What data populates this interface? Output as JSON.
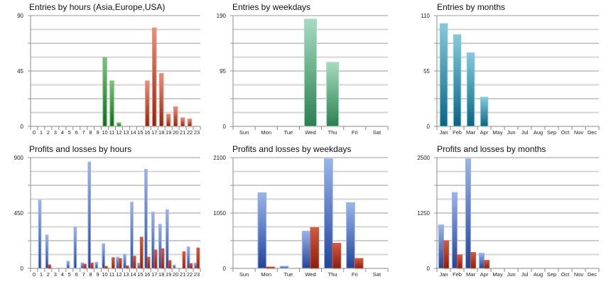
{
  "chart_data": [
    {
      "type": "bar",
      "title": "Entries by hours (Asia,Europe,USA)",
      "xlabel": "",
      "ylabel": "",
      "ylim": [
        0,
        90
      ],
      "yticks": [
        "0",
        "45",
        "90"
      ],
      "grid": true,
      "legend": "none",
      "categories": [
        "0",
        "1",
        "2",
        "3",
        "4",
        "5",
        "6",
        "7",
        "8",
        "9",
        "10",
        "11",
        "12",
        "13",
        "14",
        "15",
        "16",
        "17",
        "18",
        "19",
        "20",
        "21",
        "22",
        "23"
      ],
      "series": [
        {
          "name": "Asia/Europe",
          "color_top": "#7cc47c",
          "color_bottom": "#0f6b1a",
          "values": [
            0,
            0,
            0,
            0,
            0,
            0,
            0,
            0,
            0,
            0,
            56,
            37,
            3,
            0,
            0,
            0,
            0,
            0,
            0,
            0,
            0,
            0,
            0,
            0
          ]
        },
        {
          "name": "USA",
          "color_top": "#e8907c",
          "color_bottom": "#8e2410",
          "values": [
            0,
            0,
            0,
            0,
            0,
            0,
            0,
            0,
            0,
            0,
            0,
            0,
            0,
            0,
            0,
            0,
            37,
            80,
            43,
            10,
            16,
            7,
            6,
            0
          ]
        }
      ],
      "stacked": true
    },
    {
      "type": "bar",
      "title": "Entries by weekdays",
      "xlabel": "",
      "ylabel": "",
      "ylim": [
        0,
        190
      ],
      "yticks": [
        "0",
        "95",
        "190"
      ],
      "grid": true,
      "legend": "none",
      "categories": [
        "Sun",
        "Mon",
        "Tue",
        "Wed",
        "Thu",
        "Fri",
        "Sat"
      ],
      "series": [
        {
          "name": "Entries",
          "color_top": "#a6dcc0",
          "color_bottom": "#2a8050",
          "values": [
            0,
            0,
            0,
            184,
            110,
            0,
            0
          ]
        }
      ],
      "stacked": true
    },
    {
      "type": "bar",
      "title": "Entries by months",
      "xlabel": "",
      "ylabel": "",
      "ylim": [
        0,
        110
      ],
      "yticks": [
        "0",
        "55",
        "110"
      ],
      "grid": true,
      "legend": "none",
      "categories": [
        "Jan",
        "Feb",
        "Mar",
        "Apr",
        "May",
        "Jun",
        "Jul",
        "Aug",
        "Sep",
        "Oct",
        "Nov",
        "Dec"
      ],
      "series": [
        {
          "name": "Entries",
          "color_top": "#86cadc",
          "color_bottom": "#0a6482",
          "values": [
            102,
            91,
            73,
            29,
            0,
            0,
            0,
            0,
            0,
            0,
            0,
            0
          ]
        }
      ],
      "stacked": true
    },
    {
      "type": "bar",
      "title": "Profits and losses by hours",
      "xlabel": "",
      "ylabel": "",
      "ylim": [
        0,
        900
      ],
      "yticks": [
        "0",
        "450",
        "900"
      ],
      "grid": true,
      "legend": "none",
      "categories": [
        "0",
        "1",
        "2",
        "3",
        "4",
        "5",
        "6",
        "7",
        "8",
        "9",
        "10",
        "11",
        "12",
        "13",
        "14",
        "15",
        "16",
        "17",
        "18",
        "19",
        "20",
        "21",
        "22",
        "23"
      ],
      "series": [
        {
          "name": "Profits",
          "color_top": "#9ab4ea",
          "color_bottom": "#22439a",
          "values": [
            0,
            553,
            272,
            0,
            0,
            58,
            335,
            46,
            865,
            50,
            200,
            0,
            92,
            116,
            538,
            44,
            804,
            457,
            358,
            476,
            27,
            0,
            175,
            44
          ]
        },
        {
          "name": "Losses",
          "color_top": "#d05a40",
          "color_bottom": "#8c1e0a",
          "values": [
            0,
            0,
            29,
            0,
            0,
            0,
            0,
            35,
            44,
            0,
            17,
            87,
            81,
            21,
            100,
            254,
            92,
            150,
            160,
            64,
            0,
            135,
            40,
            166
          ]
        }
      ],
      "stacked": false
    },
    {
      "type": "bar",
      "title": "Profits and losses by weekdays",
      "xlabel": "",
      "ylabel": "",
      "ylim": [
        0,
        2100
      ],
      "yticks": [
        "0",
        "1050",
        "2100"
      ],
      "grid": true,
      "legend": "none",
      "categories": [
        "Sun",
        "Mon",
        "Tue",
        "Wed",
        "Thu",
        "Fri",
        "Sat"
      ],
      "series": [
        {
          "name": "Profits",
          "color_top": "#9ab4ea",
          "color_bottom": "#22439a",
          "values": [
            0,
            1434,
            40,
            706,
            2077,
            1246,
            0
          ]
        },
        {
          "name": "Losses",
          "color_top": "#d05a40",
          "color_bottom": "#8c1e0a",
          "values": [
            0,
            27,
            0,
            773,
            477,
            189,
            0
          ]
        }
      ],
      "stacked": false
    },
    {
      "type": "bar",
      "title": "Profits and losses by months",
      "xlabel": "",
      "ylabel": "",
      "ylim": [
        0,
        2500
      ],
      "yticks": [
        "0",
        "1250",
        "2500"
      ],
      "grid": true,
      "legend": "none",
      "categories": [
        "Jan",
        "Feb",
        "Mar",
        "Apr",
        "May",
        "Jun",
        "Jul",
        "Aug",
        "Sep",
        "Oct",
        "Nov",
        "Dec"
      ],
      "series": [
        {
          "name": "Profits",
          "color_top": "#9ab4ea",
          "color_bottom": "#22439a",
          "values": [
            980,
            1713,
            2473,
            343,
            0,
            0,
            0,
            0,
            0,
            0,
            0,
            0
          ]
        },
        {
          "name": "Losses",
          "color_top": "#d05a40",
          "color_bottom": "#8c1e0a",
          "values": [
            626,
            305,
            359,
            182,
            0,
            0,
            0,
            0,
            0,
            0,
            0,
            0
          ]
        }
      ],
      "stacked": false
    }
  ]
}
